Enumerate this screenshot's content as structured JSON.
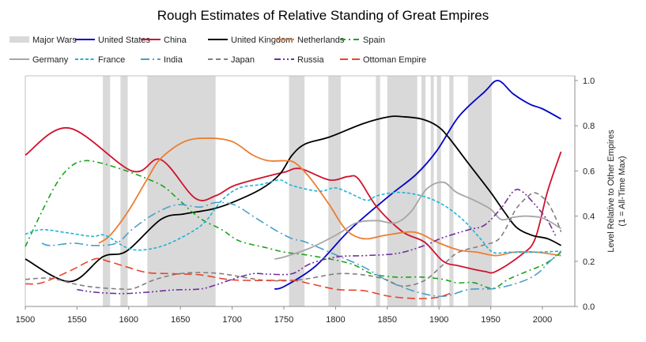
{
  "chart_data": {
    "type": "line",
    "title": "Rough Estimates of Relative Standing of Great Empires",
    "ylabel": [
      "Level Relative to Other Empires",
      "(1 = All-Time Max)"
    ],
    "xlabel": "",
    "xlim": [
      1500,
      2030
    ],
    "ylim": [
      0,
      1
    ],
    "x_ticks": [
      "1500",
      "1550",
      "1600",
      "1650",
      "1700",
      "1750",
      "1800",
      "1850",
      "1900",
      "1950",
      "2000"
    ],
    "y_ticks": [
      "0.0",
      "0.2",
      "0.4",
      "0.6",
      "0.8",
      "1.0"
    ],
    "grid": false,
    "legend_position": "top",
    "wars": {
      "name": "Major Wars",
      "color": "#d9d9d9",
      "periods": [
        [
          1575,
          1582
        ],
        [
          1592,
          1599
        ],
        [
          1618,
          1684
        ],
        [
          1755,
          1770
        ],
        [
          1793,
          1805
        ],
        [
          1839,
          1843
        ],
        [
          1850,
          1879
        ],
        [
          1883,
          1887
        ],
        [
          1892,
          1895
        ],
        [
          1898,
          1902
        ],
        [
          1910,
          1914
        ],
        [
          1928,
          1951
        ]
      ]
    },
    "series": [
      {
        "name": "United States",
        "color": "#0000cc",
        "style": "solid",
        "points": [
          [
            1741,
            0.077
          ],
          [
            1751,
            0.09
          ],
          [
            1781,
            0.18
          ],
          [
            1814,
            0.34
          ],
          [
            1852,
            0.49
          ],
          [
            1878,
            0.585
          ],
          [
            1898,
            0.69
          ],
          [
            1919,
            0.84
          ],
          [
            1944,
            0.95
          ],
          [
            1957,
            1.0
          ],
          [
            1972,
            0.94
          ],
          [
            1988,
            0.895
          ],
          [
            2000,
            0.875
          ],
          [
            2018,
            0.83
          ]
        ]
      },
      {
        "name": "China",
        "color": "#d0122e",
        "style": "solid",
        "points": [
          [
            1500,
            0.67
          ],
          [
            1542,
            0.79
          ],
          [
            1603,
            0.6
          ],
          [
            1631,
            0.65
          ],
          [
            1664,
            0.48
          ],
          [
            1684,
            0.49
          ],
          [
            1702,
            0.535
          ],
          [
            1733,
            0.575
          ],
          [
            1751,
            0.595
          ],
          [
            1766,
            0.61
          ],
          [
            1794,
            0.56
          ],
          [
            1812,
            0.575
          ],
          [
            1822,
            0.565
          ],
          [
            1840,
            0.44
          ],
          [
            1865,
            0.33
          ],
          [
            1886,
            0.285
          ],
          [
            1904,
            0.2
          ],
          [
            1919,
            0.18
          ],
          [
            1944,
            0.155
          ],
          [
            1955,
            0.155
          ],
          [
            1980,
            0.23
          ],
          [
            1993,
            0.3
          ],
          [
            2005,
            0.51
          ],
          [
            2018,
            0.685
          ]
        ]
      },
      {
        "name": "United Kingdom",
        "color": "#000000",
        "style": "solid",
        "points": [
          [
            1500,
            0.21
          ],
          [
            1543,
            0.11
          ],
          [
            1575,
            0.22
          ],
          [
            1598,
            0.245
          ],
          [
            1631,
            0.385
          ],
          [
            1654,
            0.41
          ],
          [
            1680,
            0.43
          ],
          [
            1700,
            0.46
          ],
          [
            1728,
            0.52
          ],
          [
            1746,
            0.585
          ],
          [
            1758,
            0.67
          ],
          [
            1771,
            0.72
          ],
          [
            1794,
            0.75
          ],
          [
            1827,
            0.81
          ],
          [
            1852,
            0.84
          ],
          [
            1865,
            0.84
          ],
          [
            1883,
            0.83
          ],
          [
            1898,
            0.8
          ],
          [
            1909,
            0.75
          ],
          [
            1929,
            0.63
          ],
          [
            1950,
            0.505
          ],
          [
            1963,
            0.42
          ],
          [
            1975,
            0.35
          ],
          [
            1990,
            0.315
          ],
          [
            2005,
            0.3
          ],
          [
            2018,
            0.27
          ]
        ]
      },
      {
        "name": "Netherlands",
        "color": "#ed7d31",
        "style": "solid",
        "points": [
          [
            1571,
            0.28
          ],
          [
            1582,
            0.315
          ],
          [
            1600,
            0.425
          ],
          [
            1618,
            0.565
          ],
          [
            1631,
            0.655
          ],
          [
            1654,
            0.73
          ],
          [
            1677,
            0.745
          ],
          [
            1700,
            0.73
          ],
          [
            1720,
            0.67
          ],
          [
            1735,
            0.645
          ],
          [
            1751,
            0.645
          ],
          [
            1761,
            0.635
          ],
          [
            1776,
            0.565
          ],
          [
            1794,
            0.45
          ],
          [
            1810,
            0.34
          ],
          [
            1827,
            0.3
          ],
          [
            1848,
            0.315
          ],
          [
            1871,
            0.33
          ],
          [
            1883,
            0.32
          ],
          [
            1898,
            0.285
          ],
          [
            1919,
            0.25
          ],
          [
            1937,
            0.24
          ],
          [
            1955,
            0.225
          ],
          [
            1972,
            0.24
          ],
          [
            1995,
            0.24
          ],
          [
            2018,
            0.225
          ]
        ]
      },
      {
        "name": "Spain",
        "color": "#1aa41a",
        "style": "dashdot",
        "points": [
          [
            1500,
            0.265
          ],
          [
            1516,
            0.42
          ],
          [
            1531,
            0.55
          ],
          [
            1544,
            0.62
          ],
          [
            1557,
            0.645
          ],
          [
            1573,
            0.635
          ],
          [
            1598,
            0.6
          ],
          [
            1618,
            0.565
          ],
          [
            1634,
            0.53
          ],
          [
            1649,
            0.47
          ],
          [
            1669,
            0.39
          ],
          [
            1690,
            0.34
          ],
          [
            1707,
            0.29
          ],
          [
            1733,
            0.26
          ],
          [
            1751,
            0.24
          ],
          [
            1776,
            0.225
          ],
          [
            1814,
            0.19
          ],
          [
            1835,
            0.145
          ],
          [
            1858,
            0.13
          ],
          [
            1883,
            0.13
          ],
          [
            1904,
            0.12
          ],
          [
            1917,
            0.105
          ],
          [
            1934,
            0.105
          ],
          [
            1952,
            0.08
          ],
          [
            1967,
            0.12
          ],
          [
            1985,
            0.155
          ],
          [
            2003,
            0.19
          ],
          [
            2018,
            0.24
          ]
        ]
      },
      {
        "name": "Germany",
        "color": "#a6a6a6",
        "style": "solid",
        "points": [
          [
            1741,
            0.21
          ],
          [
            1751,
            0.22
          ],
          [
            1776,
            0.26
          ],
          [
            1802,
            0.32
          ],
          [
            1820,
            0.37
          ],
          [
            1840,
            0.38
          ],
          [
            1858,
            0.37
          ],
          [
            1873,
            0.42
          ],
          [
            1888,
            0.52
          ],
          [
            1904,
            0.55
          ],
          [
            1917,
            0.505
          ],
          [
            1934,
            0.47
          ],
          [
            1950,
            0.43
          ],
          [
            1960,
            0.385
          ],
          [
            1972,
            0.395
          ],
          [
            1985,
            0.4
          ],
          [
            2001,
            0.39
          ],
          [
            2018,
            0.345
          ]
        ]
      },
      {
        "name": "France",
        "color": "#1cb4d8",
        "style": "shortdash",
        "points": [
          [
            1500,
            0.32
          ],
          [
            1516,
            0.34
          ],
          [
            1542,
            0.325
          ],
          [
            1565,
            0.31
          ],
          [
            1577,
            0.315
          ],
          [
            1598,
            0.26
          ],
          [
            1613,
            0.25
          ],
          [
            1634,
            0.27
          ],
          [
            1657,
            0.32
          ],
          [
            1674,
            0.375
          ],
          [
            1690,
            0.47
          ],
          [
            1707,
            0.525
          ],
          [
            1728,
            0.54
          ],
          [
            1746,
            0.56
          ],
          [
            1758,
            0.535
          ],
          [
            1784,
            0.51
          ],
          [
            1799,
            0.525
          ],
          [
            1812,
            0.505
          ],
          [
            1830,
            0.47
          ],
          [
            1840,
            0.49
          ],
          [
            1860,
            0.505
          ],
          [
            1883,
            0.49
          ],
          [
            1904,
            0.45
          ],
          [
            1924,
            0.38
          ],
          [
            1940,
            0.3
          ],
          [
            1952,
            0.24
          ],
          [
            1967,
            0.24
          ],
          [
            1993,
            0.24
          ],
          [
            2018,
            0.245
          ]
        ]
      },
      {
        "name": "India",
        "color": "#4aa0c8",
        "style": "longdashdot",
        "points": [
          [
            1516,
            0.28
          ],
          [
            1524,
            0.27
          ],
          [
            1547,
            0.28
          ],
          [
            1565,
            0.27
          ],
          [
            1588,
            0.28
          ],
          [
            1603,
            0.34
          ],
          [
            1623,
            0.405
          ],
          [
            1646,
            0.45
          ],
          [
            1669,
            0.44
          ],
          [
            1684,
            0.46
          ],
          [
            1702,
            0.45
          ],
          [
            1720,
            0.4
          ],
          [
            1741,
            0.34
          ],
          [
            1758,
            0.3
          ],
          [
            1771,
            0.285
          ],
          [
            1802,
            0.225
          ],
          [
            1827,
            0.175
          ],
          [
            1852,
            0.11
          ],
          [
            1878,
            0.065
          ],
          [
            1904,
            0.045
          ],
          [
            1929,
            0.075
          ],
          [
            1955,
            0.08
          ],
          [
            1980,
            0.11
          ],
          [
            1995,
            0.145
          ],
          [
            2005,
            0.19
          ],
          [
            2018,
            0.245
          ]
        ]
      },
      {
        "name": "Japan",
        "color": "#808080",
        "style": "dash",
        "points": [
          [
            1500,
            0.12
          ],
          [
            1524,
            0.125
          ],
          [
            1547,
            0.1
          ],
          [
            1567,
            0.085
          ],
          [
            1593,
            0.077
          ],
          [
            1605,
            0.08
          ],
          [
            1626,
            0.12
          ],
          [
            1649,
            0.145
          ],
          [
            1669,
            0.15
          ],
          [
            1690,
            0.145
          ],
          [
            1710,
            0.13
          ],
          [
            1733,
            0.115
          ],
          [
            1758,
            0.115
          ],
          [
            1776,
            0.125
          ],
          [
            1802,
            0.145
          ],
          [
            1827,
            0.14
          ],
          [
            1848,
            0.12
          ],
          [
            1865,
            0.09
          ],
          [
            1886,
            0.115
          ],
          [
            1904,
            0.185
          ],
          [
            1919,
            0.24
          ],
          [
            1942,
            0.27
          ],
          [
            1957,
            0.295
          ],
          [
            1967,
            0.365
          ],
          [
            1975,
            0.435
          ],
          [
            1988,
            0.495
          ],
          [
            1995,
            0.5
          ],
          [
            2005,
            0.46
          ],
          [
            2013,
            0.39
          ],
          [
            2018,
            0.33
          ]
        ]
      },
      {
        "name": "Russia",
        "color": "#7030a0",
        "style": "dashdotdot",
        "points": [
          [
            1550,
            0.075
          ],
          [
            1567,
            0.063
          ],
          [
            1593,
            0.057
          ],
          [
            1618,
            0.063
          ],
          [
            1643,
            0.073
          ],
          [
            1669,
            0.077
          ],
          [
            1684,
            0.095
          ],
          [
            1700,
            0.12
          ],
          [
            1720,
            0.145
          ],
          [
            1735,
            0.143
          ],
          [
            1758,
            0.145
          ],
          [
            1776,
            0.19
          ],
          [
            1802,
            0.22
          ],
          [
            1827,
            0.225
          ],
          [
            1860,
            0.235
          ],
          [
            1886,
            0.27
          ],
          [
            1904,
            0.305
          ],
          [
            1929,
            0.34
          ],
          [
            1944,
            0.36
          ],
          [
            1960,
            0.435
          ],
          [
            1972,
            0.51
          ],
          [
            1980,
            0.51
          ],
          [
            1993,
            0.45
          ],
          [
            2005,
            0.38
          ],
          [
            2013,
            0.31
          ]
        ]
      },
      {
        "name": "Ottoman Empire",
        "color": "#e8452c",
        "style": "longdash",
        "points": [
          [
            1500,
            0.1
          ],
          [
            1516,
            0.105
          ],
          [
            1542,
            0.155
          ],
          [
            1567,
            0.21
          ],
          [
            1580,
            0.2
          ],
          [
            1598,
            0.175
          ],
          [
            1618,
            0.15
          ],
          [
            1643,
            0.145
          ],
          [
            1669,
            0.14
          ],
          [
            1695,
            0.12
          ],
          [
            1720,
            0.115
          ],
          [
            1758,
            0.115
          ],
          [
            1776,
            0.1
          ],
          [
            1802,
            0.075
          ],
          [
            1827,
            0.07
          ],
          [
            1852,
            0.045
          ],
          [
            1878,
            0.035
          ],
          [
            1898,
            0.04
          ],
          [
            1914,
            0.063
          ]
        ]
      }
    ]
  }
}
